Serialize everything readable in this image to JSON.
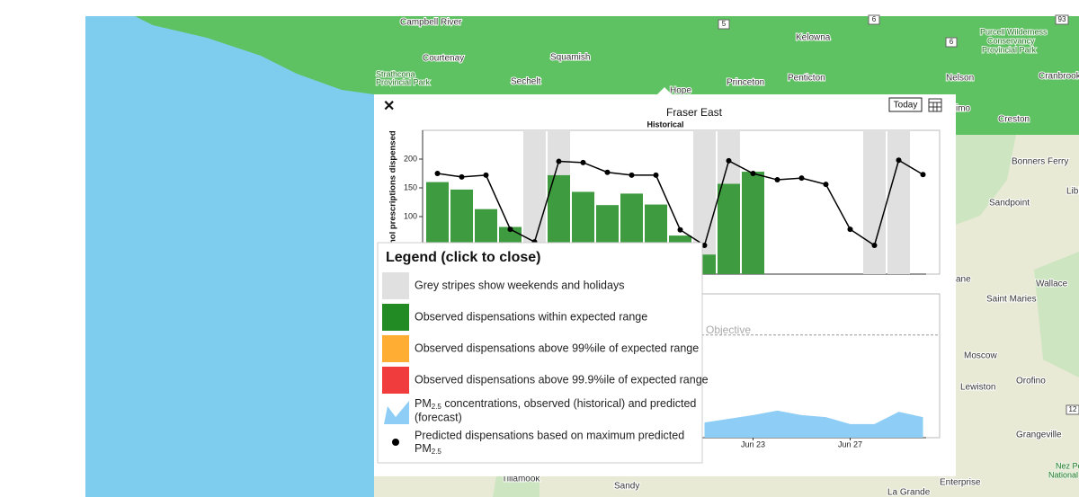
{
  "map": {
    "labels": [
      "Campbell River",
      "Courtenay",
      "Strathcona",
      "Provincial Park",
      "Squamish",
      "Sechelt",
      "Hope",
      "Princeton",
      "Penticton",
      "Kelowna",
      "Nelson",
      "Cranbrook",
      "Creston",
      "Purcell Wilderness",
      "Conservancy",
      "Provincial Park",
      "Bonners Ferry",
      "Sandpoint",
      "Libl",
      "Wallace",
      "Saint Maries",
      "Moscow",
      "Lewiston",
      "Orofino",
      "Grangeville",
      "Nez Pe",
      "National",
      "ane",
      "imo",
      "Tillamook",
      "Sandy",
      "La Grande",
      "Enterprise"
    ],
    "shields": [
      "5",
      "6",
      "6",
      "93",
      "12"
    ]
  },
  "popup": {
    "close": "✕",
    "title": "Fraser East",
    "today_button": "Today"
  },
  "chart_data": [
    {
      "type": "bar",
      "subtitle": "Historical",
      "y_label": "mol prescriptions dispensed",
      "ylim": [
        0,
        250
      ],
      "yticks": [
        100,
        150,
        200
      ],
      "weekend_or_holiday": [
        false,
        false,
        false,
        false,
        true,
        true,
        false,
        false,
        false,
        false,
        false,
        true,
        true,
        false,
        false,
        false,
        false,
        false,
        true,
        true,
        false
      ],
      "stripe_color": "#e0e0e0",
      "series": [
        {
          "type": "bar",
          "color": "#3f9b3f",
          "values": [
            160,
            147,
            113,
            82,
            null,
            172,
            143,
            120,
            140,
            121,
            67,
            34,
            157,
            178,
            null,
            null,
            null,
            null,
            null,
            null,
            null
          ]
        },
        {
          "type": "line",
          "color": "#000000",
          "values": [
            175,
            169,
            172,
            78,
            56,
            196,
            194,
            177,
            172,
            172,
            77,
            50,
            197,
            175,
            164,
            167,
            156,
            78,
            50,
            198,
            173
          ]
        }
      ]
    },
    {
      "type": "area",
      "color": "#8ecdf5",
      "ylim": [
        0,
        35
      ],
      "objective": 25,
      "objective_label": "Air Quality Objective",
      "categories": [
        null,
        null,
        null,
        null,
        null,
        null,
        null,
        null,
        null,
        null,
        null,
        null,
        null,
        "Jun 23",
        null,
        null,
        null,
        "Jun 27",
        null,
        null,
        null
      ],
      "values": [
        null,
        null,
        null,
        null,
        null,
        null,
        null,
        null,
        null,
        null,
        null,
        3.7,
        4.6,
        5.5,
        6.6,
        5.5,
        5,
        3.3,
        3.3,
        6.3,
        5
      ]
    }
  ],
  "legend": {
    "title": "Legend (click to close)",
    "items": [
      {
        "color": "#e0e0e0",
        "text": "Grey stripes show weekends and holidays"
      },
      {
        "color": "#238b23",
        "text": "Observed dispensations within expected range"
      },
      {
        "color": "#ffad33",
        "text": "Observed dispensations above 99%ile of expected range"
      },
      {
        "color": "#f03c3c",
        "text": "Observed dispensations above 99.9%ile of expected range"
      },
      {
        "color": "#8ecdf5",
        "text": "PM",
        "sub": "2.5",
        "text2": " concentrations, observed (historical) and predicted",
        "text3": "(forecast)"
      },
      {
        "color": "#000000",
        "text": "Predicted dispensations based on maximum predicted",
        "text2": "PM",
        "sub": "2.5"
      }
    ]
  }
}
